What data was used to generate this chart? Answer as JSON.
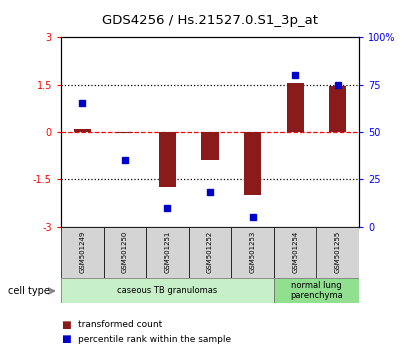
{
  "title": "GDS4256 / Hs.21527.0.S1_3p_at",
  "samples": [
    "GSM501249",
    "GSM501250",
    "GSM501251",
    "GSM501252",
    "GSM501253",
    "GSM501254",
    "GSM501255"
  ],
  "transformed_count": [
    0.1,
    -0.05,
    -1.75,
    -0.9,
    -2.0,
    1.55,
    1.45
  ],
  "percentile_rank": [
    65,
    35,
    10,
    18,
    5,
    80,
    75
  ],
  "ylim_left": [
    -3,
    3
  ],
  "ylim_right": [
    0,
    100
  ],
  "yticks_left": [
    -3,
    -1.5,
    0,
    1.5,
    3
  ],
  "yticks_right": [
    0,
    25,
    50,
    75,
    100
  ],
  "ytick_labels_left": [
    "-3",
    "-1.5",
    "0",
    "1.5",
    "3"
  ],
  "ytick_labels_right": [
    "0",
    "25",
    "50",
    "75",
    "100%"
  ],
  "bar_color": "#8B1A1A",
  "dot_color": "#0000CD",
  "bar_width": 0.4,
  "cell_types": [
    {
      "label": "caseous TB granulomas",
      "samples": [
        0,
        1,
        2,
        3,
        4
      ],
      "color": "#c8f0c8"
    },
    {
      "label": "normal lung\nparenchyma",
      "samples": [
        5,
        6
      ],
      "color": "#90e090"
    }
  ],
  "legend_bar_label": "transformed count",
  "legend_dot_label": "percentile rank within the sample",
  "cell_type_label": "cell type"
}
